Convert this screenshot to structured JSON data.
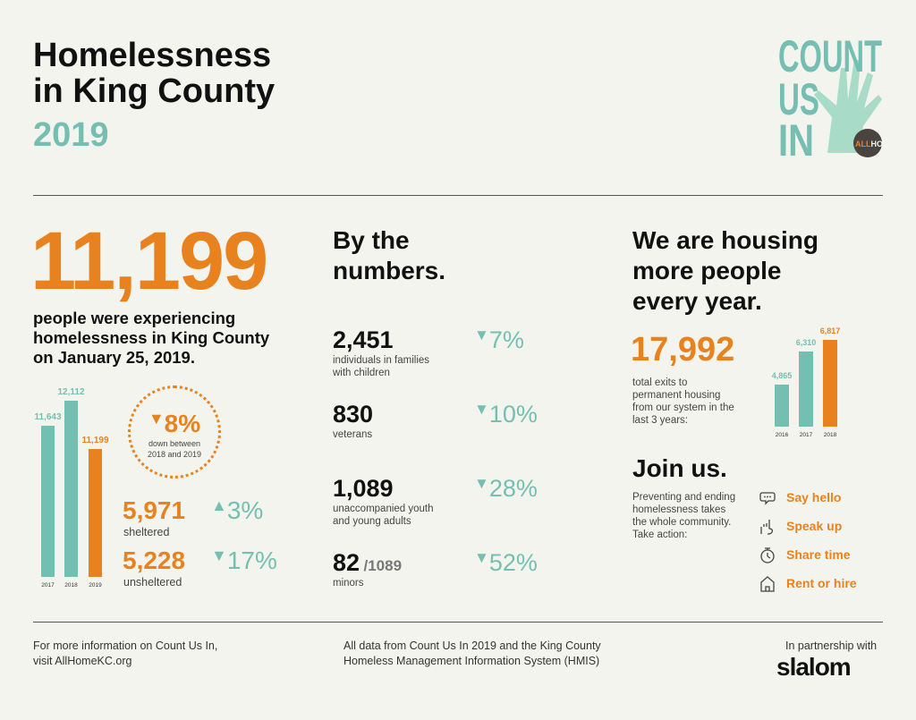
{
  "header": {
    "title_line1": "Homelessness",
    "title_line2": "in King County",
    "year": "2019",
    "logo_text": "COUNT US IN",
    "logo_badge": "ALLHOME"
  },
  "total": {
    "value": "11,199",
    "description": "people were experiencing homelessness in King County on January 25, 2019."
  },
  "change": {
    "arrow": "▼",
    "value": "8%",
    "text_line1": "down between",
    "text_line2": "2018 and 2019"
  },
  "sheltered": {
    "value": "5,971",
    "label": "sheltered",
    "arrow": "▲",
    "change": "3%"
  },
  "unsheltered": {
    "value": "5,228",
    "label": "unsheltered",
    "arrow": "▼",
    "change": "17%"
  },
  "by_numbers": {
    "heading_line1": "By the",
    "heading_line2": "numbers.",
    "items": [
      {
        "value": "2,451",
        "suffix": "",
        "label_line1": "individuals in families",
        "label_line2": "with children",
        "change": "7%"
      },
      {
        "value": "830",
        "suffix": "",
        "label_line1": "veterans",
        "label_line2": "",
        "change": "10%"
      },
      {
        "value": "1,089",
        "suffix": "",
        "label_line1": "unaccompanied youth",
        "label_line2": "and young adults",
        "change": "28%"
      },
      {
        "value": "82",
        "suffix": "/1089",
        "label_line1": "minors",
        "label_line2": "",
        "change": "52%"
      }
    ]
  },
  "housing": {
    "heading_line1": "We are housing",
    "heading_line2": "more people",
    "heading_line3": "every year.",
    "value": "17,992",
    "text_line1": "total exits to",
    "text_line2": "permanent housing",
    "text_line3": "from our system in the",
    "text_line4": "last 3 years:"
  },
  "join": {
    "heading": "Join us.",
    "text_line1": "Preventing and ending",
    "text_line2": "homelessness takes",
    "text_line3": "the whole community.",
    "text_line4": "Take action:",
    "actions": [
      {
        "label": "Say hello",
        "icon": "speech-bubble-icon"
      },
      {
        "label": "Speak up",
        "icon": "raised-hand-icon"
      },
      {
        "label": "Share time",
        "icon": "stopwatch-icon"
      },
      {
        "label": "Rent or hire",
        "icon": "house-icon"
      }
    ]
  },
  "footer": {
    "left_line1": "For more information on Count Us In,",
    "left_line2": "visit AllHomeKC.org",
    "center_line1": "All data from Count Us In 2019 and the King County",
    "center_line2": "Homeless Management Information System (HMIS)",
    "right_label": "In partnership with",
    "partner_logo": "slalom"
  },
  "colors": {
    "teal": "#74bfb1",
    "orange": "#e8821e",
    "background": "#f4f4ef"
  },
  "chart_data": [
    {
      "type": "bar",
      "categories": [
        "2017",
        "2018",
        "2019"
      ],
      "values": [
        11643,
        12112,
        11199
      ],
      "value_labels": [
        "11,643",
        "12,112",
        "11,199"
      ],
      "ylim": [
        8800,
        12112
      ],
      "colors": [
        "#74bfb1",
        "#74bfb1",
        "#e8821e"
      ]
    },
    {
      "type": "bar",
      "categories": [
        "2016",
        "2017",
        "2018"
      ],
      "values": [
        4865,
        6310,
        6817
      ],
      "value_labels": [
        "4,865",
        "6,310",
        "6,817"
      ],
      "ylim": [
        3000,
        6817
      ],
      "colors": [
        "#74bfb1",
        "#74bfb1",
        "#e8821e"
      ]
    }
  ]
}
